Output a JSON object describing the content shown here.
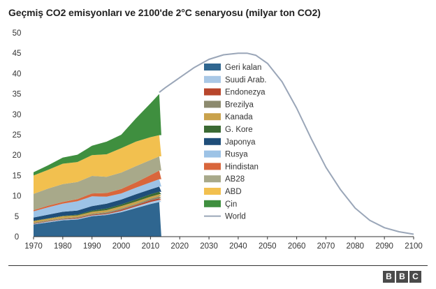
{
  "title": "Geçmiş CO2 emisyonları ve 2100'de 2°C senaryosu (milyar ton CO2)",
  "logo_text": "BBC",
  "chart_data": {
    "type": "area",
    "title": "Geçmiş CO2 emisyonları ve 2100'de 2°C senaryosu (milyar ton CO2)",
    "xlabel": "",
    "ylabel": "",
    "xlim": [
      1970,
      2100
    ],
    "ylim": [
      0,
      50
    ],
    "x_ticks": [
      1970,
      1980,
      1990,
      2000,
      2010,
      2020,
      2030,
      2040,
      2050,
      2060,
      2070,
      2080,
      2090,
      2100
    ],
    "y_ticks": [
      0,
      5,
      10,
      15,
      20,
      25,
      30,
      35,
      40,
      45,
      50
    ],
    "grid": false,
    "legend_position": "center",
    "stacked_x": [
      1970,
      1975,
      1980,
      1985,
      1990,
      1995,
      2000,
      2005,
      2010,
      2013
    ],
    "stacked_series": [
      {
        "name": "Geri kalan",
        "color": "#2f6690",
        "values": [
          3.0,
          3.5,
          4.0,
          4.2,
          5.0,
          5.3,
          6.0,
          7.0,
          8.0,
          8.5
        ]
      },
      {
        "name": "Suudi Arab.",
        "color": "#a9c8e6",
        "values": [
          0.1,
          0.2,
          0.2,
          0.2,
          0.2,
          0.2,
          0.3,
          0.4,
          0.5,
          0.5
        ]
      },
      {
        "name": "Endonezya",
        "color": "#b8462c",
        "values": [
          0.1,
          0.1,
          0.1,
          0.2,
          0.2,
          0.2,
          0.3,
          0.3,
          0.4,
          0.4
        ]
      },
      {
        "name": "Brezilya",
        "color": "#8c8a6e",
        "values": [
          0.2,
          0.2,
          0.2,
          0.2,
          0.2,
          0.3,
          0.3,
          0.3,
          0.4,
          0.5
        ]
      },
      {
        "name": "Kanada",
        "color": "#c9a24c",
        "values": [
          0.4,
          0.4,
          0.5,
          0.4,
          0.5,
          0.5,
          0.6,
          0.6,
          0.5,
          0.5
        ]
      },
      {
        "name": "G. Kore",
        "color": "#3b6a33",
        "values": [
          0.1,
          0.1,
          0.1,
          0.2,
          0.3,
          0.4,
          0.4,
          0.5,
          0.6,
          0.6
        ]
      },
      {
        "name": "Japonya",
        "color": "#1f4e79",
        "values": [
          0.8,
          0.9,
          1.0,
          1.0,
          1.1,
          1.2,
          1.2,
          1.3,
          1.2,
          1.3
        ]
      },
      {
        "name": "Rusya",
        "color": "#9dc3e6",
        "values": [
          1.5,
          1.8,
          2.0,
          2.3,
          2.4,
          1.7,
          1.5,
          1.6,
          1.7,
          1.8
        ]
      },
      {
        "name": "Hindistan",
        "color": "#d9663c",
        "values": [
          0.3,
          0.4,
          0.4,
          0.5,
          0.7,
          0.9,
          1.1,
          1.3,
          1.8,
          2.1
        ]
      },
      {
        "name": "AB28",
        "color": "#a8a98a",
        "values": [
          4.0,
          4.2,
          4.4,
          4.2,
          4.3,
          4.0,
          4.0,
          4.0,
          3.7,
          3.5
        ]
      },
      {
        "name": "ABD",
        "color": "#f2c04f",
        "values": [
          4.5,
          4.6,
          5.0,
          4.9,
          5.1,
          5.5,
          6.0,
          6.0,
          5.6,
          5.2
        ]
      },
      {
        "name": "Çin",
        "color": "#3f8f3f",
        "values": [
          0.8,
          1.1,
          1.5,
          1.8,
          2.3,
          3.1,
          3.3,
          5.7,
          8.3,
          10.1
        ]
      }
    ],
    "line_series": {
      "name": "World",
      "color": "#9aa6b8",
      "x": [
        2013,
        2015,
        2020,
        2025,
        2030,
        2035,
        2040,
        2043,
        2046,
        2050,
        2055,
        2060,
        2065,
        2070,
        2075,
        2080,
        2085,
        2090,
        2095,
        2100
      ],
      "values": [
        35.4,
        36.5,
        39.0,
        41.5,
        43.5,
        44.6,
        45.0,
        45.0,
        44.5,
        42.5,
        38.0,
        31.5,
        24.0,
        17.0,
        11.5,
        7.0,
        4.0,
        2.2,
        1.2,
        0.6
      ]
    },
    "legend_order": [
      "Geri kalan",
      "Suudi Arab.",
      "Endonezya",
      "Brezilya",
      "Kanada",
      "G. Kore",
      "Japonya",
      "Rusya",
      "Hindistan",
      "AB28",
      "ABD",
      "Çin",
      "World"
    ]
  }
}
